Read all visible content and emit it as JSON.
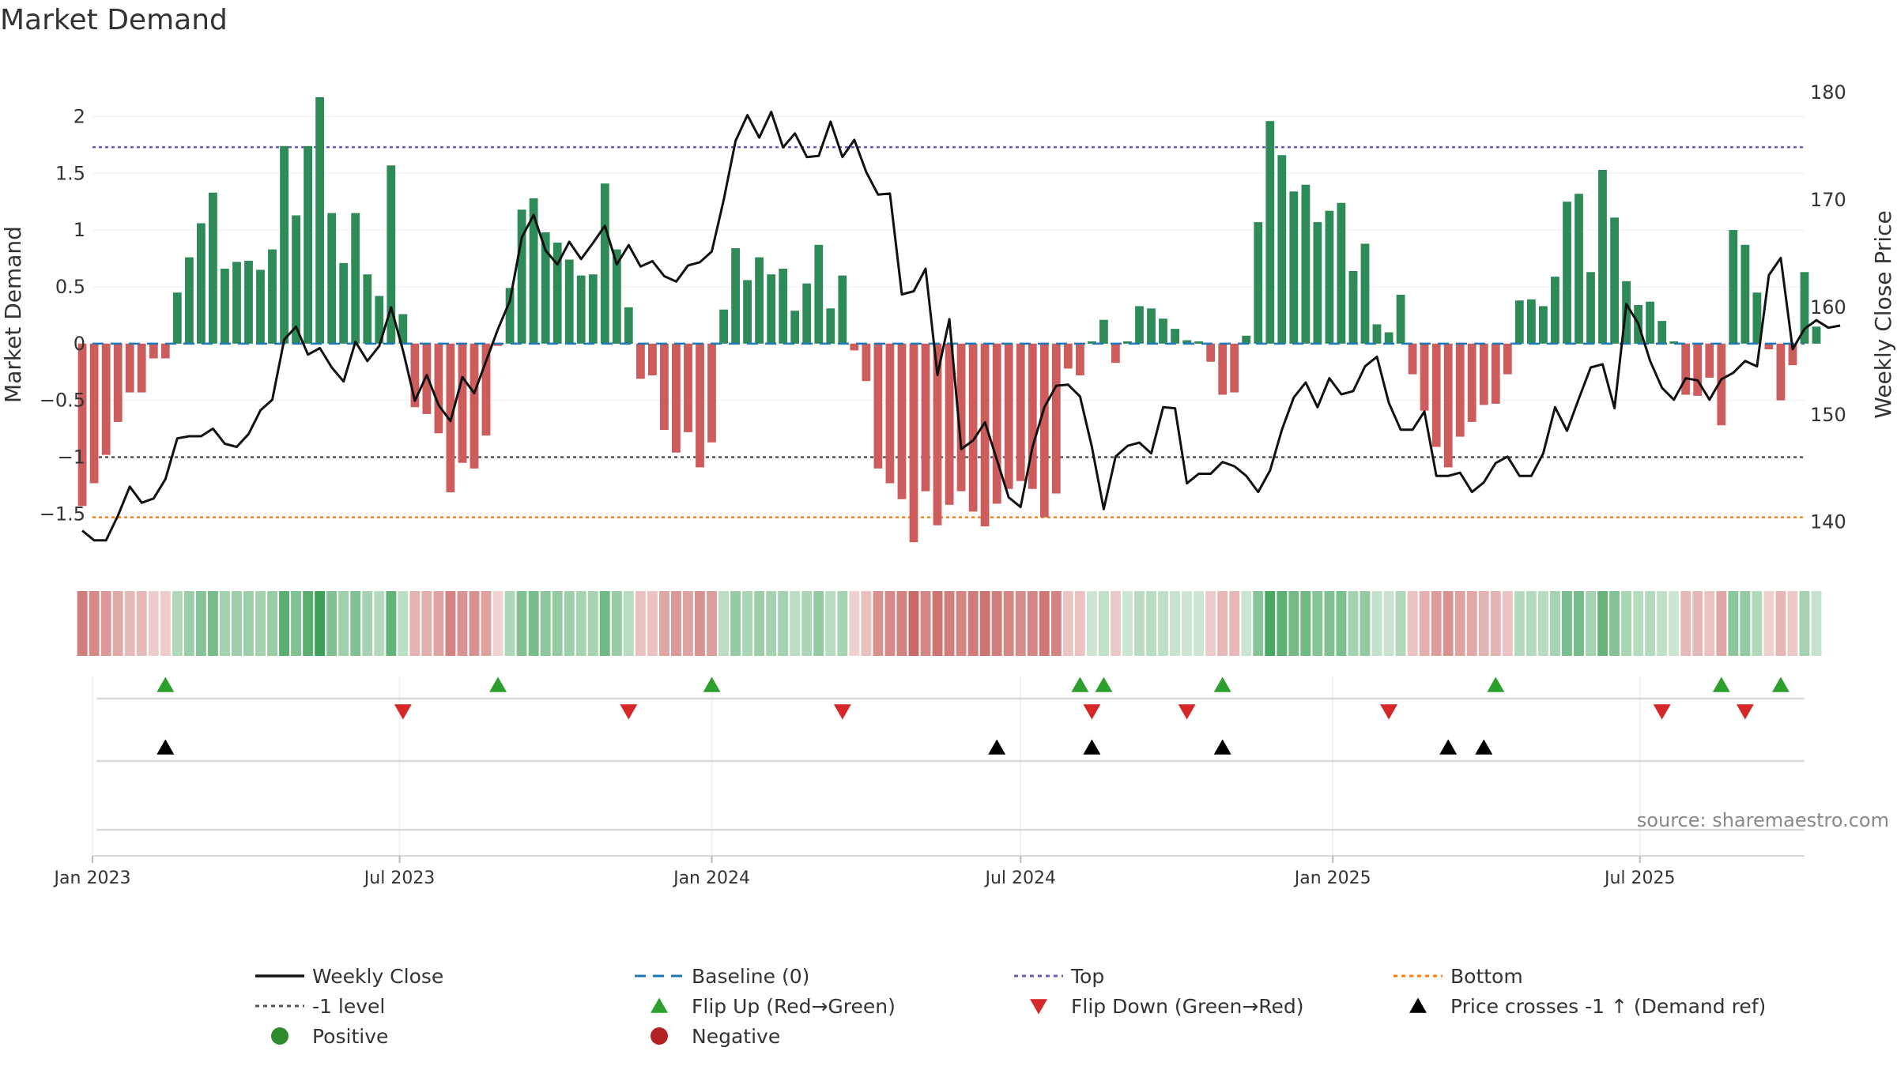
{
  "chart_data": {
    "type": "bar",
    "title": "Market Demand",
    "ylabel": "Market Demand",
    "y2label": "Weekly Close Price",
    "ylim": [
      -1.95,
      2.4
    ],
    "y2lim": [
      136,
      182
    ],
    "yticks": [
      2,
      1.5,
      1,
      0.5,
      0,
      -0.5,
      -1,
      -1.5
    ],
    "ytick_labels": [
      "2",
      "1.5",
      "1",
      "0.5",
      "0",
      "−0.5",
      "−1",
      "−1.5"
    ],
    "y2ticks": [
      180,
      170,
      160,
      150,
      140
    ],
    "y2tick_labels": [
      "180",
      "170",
      "160",
      "150",
      "140"
    ],
    "x_start": "2023-01-01",
    "x_end": "2025-10-06",
    "xtick_dates": [
      "2023-01-01",
      "2023-07-01",
      "2024-01-01",
      "2024-07-01",
      "2025-01-01",
      "2025-07-01"
    ],
    "xtick_labels": [
      "Jan 2023",
      "Jul 2023",
      "Jan 2024",
      "Jul 2024",
      "Jan 2025",
      "Jul 2025"
    ],
    "first_week": "2022-12-26",
    "top_level": 1.73,
    "bottom_level": -1.53,
    "minus_one_level": -1.0,
    "baseline": 0,
    "demand": [
      -1.43,
      -1.23,
      -0.98,
      -0.69,
      -0.43,
      -0.43,
      -0.13,
      -0.13,
      0.45,
      0.76,
      1.06,
      1.33,
      0.66,
      0.72,
      0.73,
      0.65,
      0.83,
      1.74,
      1.13,
      1.74,
      2.17,
      1.15,
      0.71,
      1.15,
      0.61,
      0.42,
      1.57,
      0.26,
      -0.56,
      -0.62,
      -0.79,
      -1.31,
      -1.05,
      -1.1,
      -0.81,
      -0.02,
      0.49,
      1.18,
      1.28,
      0.98,
      0.89,
      0.74,
      0.6,
      0.61,
      1.41,
      0.83,
      0.32,
      -0.31,
      -0.28,
      -0.76,
      -0.96,
      -0.78,
      -1.09,
      -0.87,
      0.3,
      0.84,
      0.56,
      0.76,
      0.61,
      0.66,
      0.29,
      0.53,
      0.87,
      0.31,
      0.6,
      -0.06,
      -0.33,
      -1.1,
      -1.23,
      -1.37,
      -1.75,
      -1.3,
      -1.6,
      -1.42,
      -1.3,
      -1.48,
      -1.61,
      -1.41,
      -1.28,
      -1.21,
      -1.28,
      -1.53,
      -1.32,
      -0.22,
      -0.28,
      0.02,
      0.21,
      -0.17,
      0.02,
      0.33,
      0.31,
      0.22,
      0.13,
      0.03,
      0.02,
      -0.16,
      -0.45,
      -0.43,
      0.07,
      1.07,
      1.96,
      1.66,
      1.34,
      1.4,
      1.07,
      1.17,
      1.24,
      0.64,
      0.88,
      0.17,
      0.1,
      0.43,
      -0.27,
      -0.59,
      -0.91,
      -1.09,
      -0.82,
      -0.69,
      -0.54,
      -0.53,
      -0.27,
      0.38,
      0.39,
      0.33,
      0.59,
      1.25,
      1.32,
      0.63,
      1.53,
      1.11,
      0.55,
      0.34,
      0.37,
      0.2,
      0.02,
      -0.45,
      -0.46,
      -0.3,
      -0.72,
      1.0,
      0.87,
      0.45,
      -0.05,
      -0.5,
      -0.19,
      0.63,
      0.15
    ],
    "weekly_close": [
      139.2,
      138.3,
      138.3,
      140.6,
      143.3,
      141.8,
      142.2,
      144.0,
      147.8,
      148.0,
      148.0,
      148.7,
      147.3,
      147.0,
      148.2,
      150.4,
      151.4,
      157.0,
      158.2,
      155.6,
      156.2,
      154.4,
      153.1,
      156.8,
      155.0,
      156.4,
      160.0,
      156.0,
      151.3,
      153.7,
      150.9,
      149.4,
      153.5,
      152.0,
      155.0,
      158.0,
      160.6,
      166.5,
      168.6,
      165.3,
      164.0,
      166.1,
      164.5,
      166.0,
      167.6,
      164.0,
      165.8,
      163.8,
      164.3,
      162.9,
      162.4,
      163.9,
      164.2,
      165.2,
      170.0,
      175.5,
      177.9,
      175.8,
      178.2,
      174.9,
      176.2,
      174.0,
      174.1,
      177.3,
      174.0,
      175.6,
      172.6,
      170.5,
      170.6,
      161.2,
      161.5,
      163.6,
      153.7,
      158.9,
      146.8,
      147.6,
      149.3,
      145.8,
      142.3,
      141.4,
      147.0,
      150.7,
      152.7,
      152.8,
      151.7,
      147.0,
      141.2,
      146.1,
      147.1,
      147.4,
      146.4,
      150.7,
      150.6,
      143.6,
      144.5,
      144.5,
      145.6,
      145.2,
      144.3,
      142.8,
      144.8,
      148.6,
      151.6,
      153.0,
      150.7,
      153.4,
      151.9,
      152.2,
      154.5,
      155.4,
      151.1,
      148.6,
      148.6,
      150.3,
      144.3,
      144.3,
      144.6,
      142.8,
      143.7,
      145.5,
      146.1,
      144.3,
      144.3,
      146.4,
      150.7,
      148.5,
      151.5,
      154.4,
      154.7,
      150.6,
      160.3,
      158.5,
      155.0,
      152.5,
      151.4,
      153.4,
      153.2,
      151.4,
      153.3,
      153.9,
      155.0,
      154.5,
      163.0,
      164.6,
      156.1,
      158.0,
      158.8,
      158.1,
      158.3
    ],
    "flip_up_weeks": [
      7,
      35,
      53,
      84,
      86,
      96,
      119,
      138,
      143
    ],
    "flip_down_weeks": [
      27,
      46,
      64,
      85,
      93,
      110,
      133,
      140
    ],
    "cross_weeks": [
      7,
      77,
      85,
      96,
      115,
      118
    ],
    "source": "source: sharemaestro.com",
    "colors": {
      "positive_bar": "#2e8b57",
      "negative_bar": "#cd5c5c",
      "close_line": "#111111",
      "baseline": "#1f77b4",
      "top_line": "#6a5acd",
      "minus_one_line": "#555555",
      "bottom_line": "#ff7f0e",
      "flip_up": "#2ca02c",
      "flip_down": "#d62728",
      "cross": "#000000",
      "positive_dot": "#2e8b2e",
      "negative_dot": "#b22222"
    },
    "legend": [
      {
        "label": "Weekly Close",
        "marker": "line-solid",
        "color": "#111111"
      },
      {
        "label": "Baseline (0)",
        "marker": "line-dashed",
        "color": "#1f77b4"
      },
      {
        "label": "Top",
        "marker": "line-dotted",
        "color": "#6a5acd"
      },
      {
        "label": "Bottom",
        "marker": "line-dotted",
        "color": "#ff7f0e"
      },
      {
        "label": "-1 level",
        "marker": "line-dotted",
        "color": "#555555"
      },
      {
        "label": "Flip Up (Red→Green)",
        "marker": "triangle-up",
        "color": "#2ca02c"
      },
      {
        "label": "Flip Down (Green→Red)",
        "marker": "triangle-down",
        "color": "#d62728"
      },
      {
        "label": "Price crosses -1 ↑ (Demand ref)",
        "marker": "triangle-up",
        "color": "#000000"
      },
      {
        "label": "Positive",
        "marker": "dot",
        "color": "#2e8b2e"
      },
      {
        "label": "Negative",
        "marker": "dot",
        "color": "#b22222"
      }
    ]
  }
}
